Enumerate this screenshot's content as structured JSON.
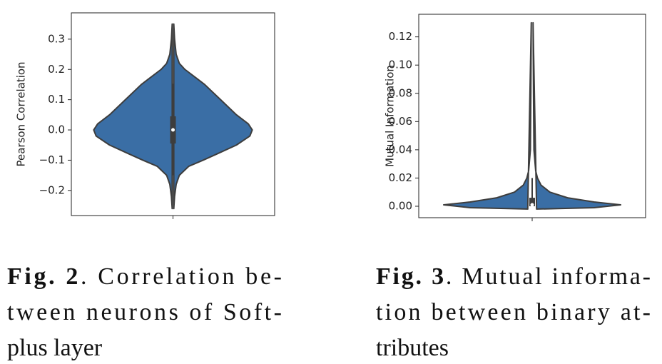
{
  "chart_data": [
    {
      "type": "violin",
      "ylabel": "Pearson Correlation",
      "color": "#3a6ea5",
      "ylim": [
        -0.283,
        0.387
      ],
      "yticks": [
        {
          "value": -0.2,
          "label": "−0.2"
        },
        {
          "value": -0.1,
          "label": "−0.1"
        },
        {
          "value": 0,
          "label": "0.0"
        },
        0.1,
        0.2,
        0.3
      ],
      "violin": {
        "y": [
          0.35,
          0.3,
          0.25,
          0.22,
          0.2,
          0.17,
          0.15,
          0.1,
          0.05,
          0.02,
          0,
          -0.02,
          -0.05,
          -0.08,
          -0.1,
          -0.12,
          -0.15,
          -0.18,
          -0.22,
          -0.26
        ],
        "density": [
          0.01,
          0.02,
          0.04,
          0.08,
          0.15,
          0.3,
          0.4,
          0.6,
          0.8,
          0.95,
          1,
          0.97,
          0.8,
          0.55,
          0.38,
          0.2,
          0.08,
          0.04,
          0.02,
          0.01
        ]
      },
      "box": {
        "whisker_low": -0.15,
        "q1": -0.045,
        "median": 0,
        "q3": 0.045,
        "whisker_high": 0.153
      }
    },
    {
      "type": "violin",
      "ylabel": "Mutual Information",
      "color": "#3a6ea5",
      "ylim": [
        -0.0081,
        0.136
      ],
      "yticks": [
        {
          "value": 0,
          "label": "0.00"
        },
        0.02,
        0.04,
        0.06,
        0.08,
        {
          "value": 0.1,
          "label": "0.10"
        },
        0.12
      ],
      "violin": {
        "y": [
          0.13,
          0.08,
          0.04,
          0.025,
          0.02,
          0.015,
          0.01,
          0.006,
          0.003,
          0.001,
          -0.001,
          -0.002
        ],
        "density": [
          0.01,
          0.015,
          0.02,
          0.04,
          0.06,
          0.1,
          0.2,
          0.4,
          0.7,
          1,
          0.7,
          0.05
        ]
      },
      "box": {
        "whisker_low": 0,
        "q1": 0,
        "median": 0.001,
        "q3": 0.006,
        "whisker_high": 0.02
      }
    }
  ],
  "captions": [
    {
      "label": "Fig. 2",
      "lines": [
        ". Correlation be-",
        "tween neurons of Soft-",
        "plus layer"
      ]
    },
    {
      "label": "Fig. 3",
      "lines": [
        ". Mutual informa-",
        "tion between binary at-",
        "tributes"
      ]
    }
  ]
}
